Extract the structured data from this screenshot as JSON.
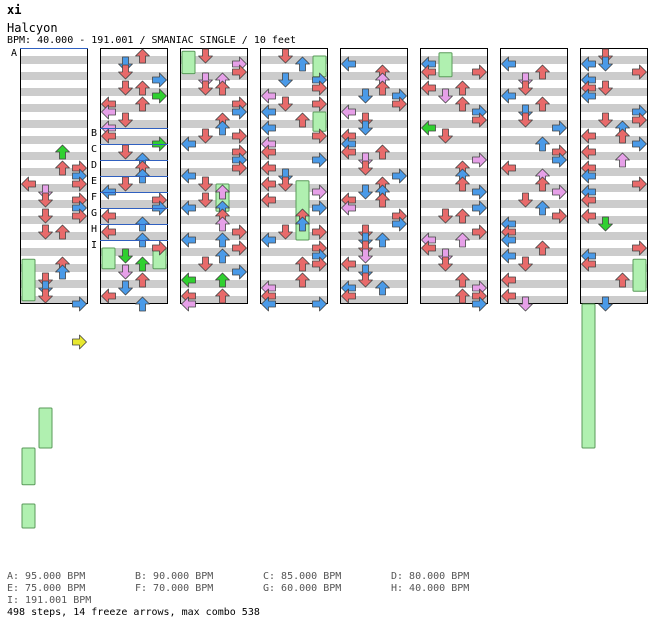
{
  "header": {
    "mark": "xi",
    "song_title": "Halcyon",
    "info": "BPM: 40.000 - 191.001 / SMANIAC SINGLE / 10 feet"
  },
  "chart_data": {
    "type": "step-chart",
    "columns": 8,
    "measures_per_column": 4,
    "lanes": [
      "left",
      "down",
      "up",
      "right"
    ],
    "colors": {
      "quarter": "#e86a6a",
      "eighth": "#4a9ae8",
      "sixteenth": "#e6a0e8",
      "other": "#e8e830",
      "freeze": "#b0f0b0",
      "green_arrow": "#30d030",
      "stripe": "#cccccc"
    },
    "bpm_change_markers": [
      {
        "label": "A",
        "column": 0,
        "beat": 0
      },
      {
        "label": "B",
        "column": 1,
        "beat": 5
      },
      {
        "label": "C",
        "column": 1,
        "beat": 6
      },
      {
        "label": "D",
        "column": 1,
        "beat": 7
      },
      {
        "label": "E",
        "column": 1,
        "beat": 8
      },
      {
        "label": "F",
        "column": 1,
        "beat": 9
      },
      {
        "label": "G",
        "column": 1,
        "beat": 10
      },
      {
        "label": "H",
        "column": 1,
        "beat": 11
      },
      {
        "label": "I",
        "column": 1,
        "beat": 12
      }
    ],
    "freezes": [
      {
        "column": 0,
        "lane": 0,
        "start": 13.2,
        "end": 15.8
      },
      {
        "column": 0,
        "lane": 1,
        "start": 22.5,
        "end": 25.0
      },
      {
        "column": 0,
        "lane": 0,
        "start": 25.0,
        "end": 27.3
      },
      {
        "column": 0,
        "lane": 0,
        "start": 28.5,
        "end": 30.0
      },
      {
        "column": 1,
        "lane": 0,
        "start": 12.5,
        "end": 13.8
      },
      {
        "column": 1,
        "lane": 3,
        "start": 12.5,
        "end": 13.8
      },
      {
        "column": 2,
        "lane": 0,
        "start": 0.2,
        "end": 1.6
      },
      {
        "column": 2,
        "lane": 2,
        "start": 8.5,
        "end": 10.2
      },
      {
        "column": 3,
        "lane": 3,
        "start": 0.5,
        "end": 1.8
      },
      {
        "column": 3,
        "lane": 3,
        "start": 4.0,
        "end": 5.2
      },
      {
        "column": 3,
        "lane": 2,
        "start": 8.3,
        "end": 12.0
      },
      {
        "column": 5,
        "lane": 1,
        "start": 0.3,
        "end": 1.8
      },
      {
        "column": 7,
        "lane": 3,
        "start": 13.2,
        "end": 15.2
      },
      {
        "column": 7,
        "lane": 0,
        "start": 16.0,
        "end": 25.0
      }
    ],
    "bpm_legend": [
      {
        "label": "A: 95.000 BPM"
      },
      {
        "label": "B: 90.000 BPM"
      },
      {
        "label": "C: 85.000 BPM"
      },
      {
        "label": "D: 80.000 BPM"
      },
      {
        "label": "E: 75.000 BPM"
      },
      {
        "label": "F: 70.000 BPM"
      },
      {
        "label": "G: 60.000 BPM"
      },
      {
        "label": "H: 40.000 BPM"
      },
      {
        "label": "I: 191.001 BPM"
      }
    ],
    "summary": "498 steps, 14 freeze arrows, max combo 538"
  }
}
